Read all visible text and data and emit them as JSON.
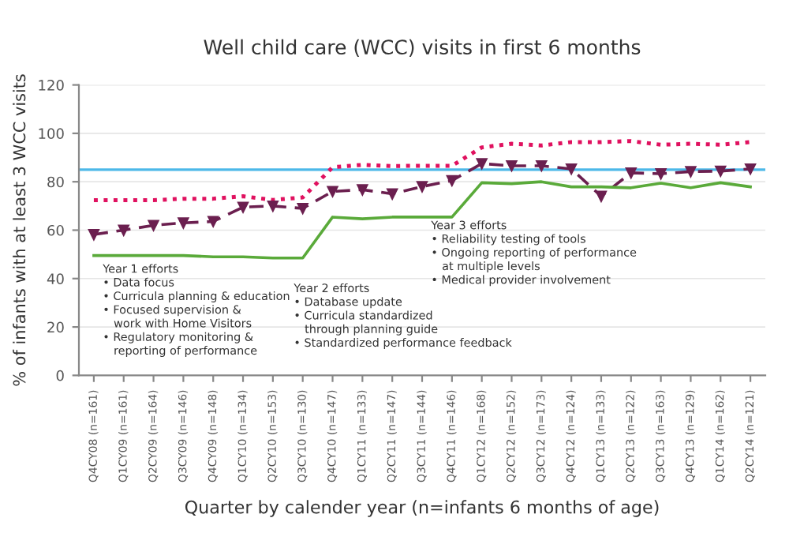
{
  "chart_data": {
    "type": "line",
    "title": "Well child care (WCC) visits in first 6 months",
    "xlabel": "Quarter by calender year (n=infants 6 months of age)",
    "ylabel": "% of infants with at least 3 WCC visits",
    "categories": [
      "Q4CY08 (n=161)",
      "Q1CY09 (n=161)",
      "Q2CY09 (n=164)",
      "Q3CY09 (n=146)",
      "Q4CY09 (n=148)",
      "Q1CY10 (n=134)",
      "Q2CY10 (n=153)",
      "Q3CY10 (n=130)",
      "Q4CY10 (n=147)",
      "Q1CY11 (n=133)",
      "Q2CY11 (n=147)",
      "Q3CY11 (n=144)",
      "Q4CY11 (n=146)",
      "Q1CY12 (n=168)",
      "Q2CY12 (n=152)",
      "Q3CY12 (n=173)",
      "Q4CY12 (n=124)",
      "Q1CY13 (n=133)",
      "Q2CY13 (n=122)",
      "Q3CY13 (n=163)",
      "Q4CY13 (n=129)",
      "Q1CY14 (n=162)",
      "Q2CY14 (n=121)"
    ],
    "series": [
      {
        "color": "#e0115f",
        "line_style": "dotted",
        "marker": "none",
        "values": [
          72.4,
          72.4,
          72.4,
          73,
          73,
          74,
          72.5,
          73.5,
          86,
          87,
          86.5,
          86.6,
          86.6,
          94.2,
          95.7,
          95,
          96.4,
          96.4,
          96.8,
          95.3,
          95.7,
          95.3,
          96.4
        ]
      },
      {
        "color": "#6b1f4f",
        "line_style": "dashed",
        "marker": "triangle",
        "values": [
          58.2,
          60,
          62,
          63,
          63.6,
          69.5,
          70,
          69,
          76,
          76.7,
          75,
          78,
          80.5,
          87.5,
          86.6,
          86.6,
          85.3,
          74,
          83.7,
          83.3,
          84.2,
          84.4,
          85.3
        ]
      },
      {
        "color": "#5aaa3a",
        "line_style": "solid",
        "marker": "none",
        "values": [
          49.5,
          49.5,
          49.5,
          49.5,
          49,
          49,
          48.5,
          48.5,
          65.4,
          64.7,
          65.4,
          65.4,
          65.4,
          79.6,
          79.2,
          80,
          77.9,
          77.9,
          77.5,
          79.4,
          77.5,
          79.6,
          77.9
        ]
      }
    ],
    "ref_lines": [
      {
        "axis": "y",
        "value": 85,
        "color": "#4db8e8",
        "line_style": "solid"
      }
    ],
    "ylim": [
      0,
      120
    ],
    "yticks": [
      0,
      20,
      40,
      60,
      80,
      100,
      120
    ],
    "grid": "y",
    "annotations": [
      "Year 1 efforts\n• Data focus\n• Curricula planning & education\n• Focused supervision &\n   work with Home Visitors\n• Regulatory monitoring &\n   reporting of performance",
      "Year 2 efforts\n• Database update\n• Curricula standardized\n   through planning guide\n• Standardized performance feedback",
      "Year 3 efforts\n• Reliability testing of tools\n• Ongoing reporting of performance\n   at multiple levels\n• Medical provider involvement"
    ]
  }
}
